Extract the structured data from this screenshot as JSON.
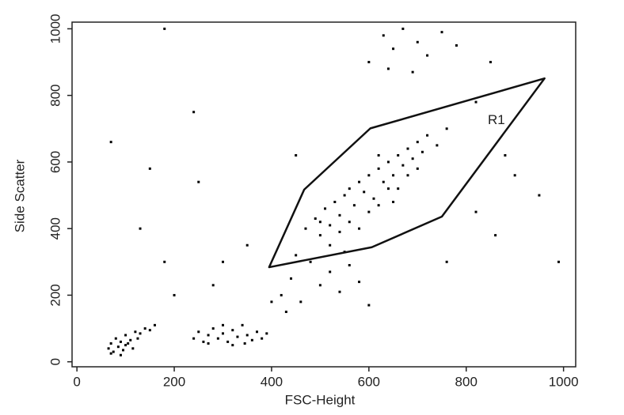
{
  "chart_data": {
    "type": "scatter",
    "xlabel": "FSC-Height",
    "ylabel": "Side Scatter",
    "xlim": [
      -10,
      1025
    ],
    "ylim": [
      -15,
      1020
    ],
    "xticks": [
      0,
      200,
      400,
      600,
      800,
      1000
    ],
    "yticks": [
      0,
      200,
      400,
      600,
      800,
      1000
    ],
    "color": "#000000",
    "x": [
      65,
      70,
      75,
      80,
      85,
      90,
      95,
      100,
      105,
      110,
      115,
      120,
      125,
      130,
      140,
      150,
      160,
      70,
      90,
      100,
      240,
      250,
      260,
      270,
      280,
      290,
      300,
      310,
      320,
      330,
      340,
      350,
      360,
      370,
      380,
      300,
      320,
      270,
      345,
      390,
      470,
      490,
      500,
      510,
      520,
      530,
      540,
      550,
      560,
      570,
      580,
      590,
      600,
      610,
      620,
      630,
      640,
      650,
      660,
      670,
      680,
      690,
      700,
      710,
      720,
      740,
      760,
      600,
      620,
      640,
      560,
      580,
      650,
      680,
      700,
      540,
      500,
      520,
      620,
      660,
      420,
      440,
      460,
      480,
      500,
      520,
      540,
      560,
      580,
      600,
      450,
      430,
      550,
      630,
      650,
      670,
      700,
      720,
      750,
      780,
      600,
      640,
      690,
      70,
      130,
      150,
      180,
      200,
      240,
      250,
      280,
      300,
      350,
      400,
      820,
      860,
      900,
      950,
      990,
      820,
      880,
      760,
      450,
      180,
      850
    ],
    "y": [
      40,
      55,
      30,
      70,
      45,
      60,
      35,
      80,
      55,
      65,
      40,
      90,
      70,
      85,
      100,
      95,
      110,
      25,
      20,
      50,
      70,
      90,
      60,
      80,
      100,
      70,
      85,
      60,
      95,
      75,
      110,
      80,
      65,
      90,
      70,
      110,
      50,
      55,
      55,
      85,
      400,
      430,
      380,
      460,
      410,
      480,
      440,
      500,
      520,
      470,
      540,
      510,
      560,
      490,
      580,
      540,
      600,
      560,
      620,
      590,
      640,
      610,
      660,
      630,
      680,
      650,
      700,
      450,
      470,
      520,
      420,
      400,
      480,
      560,
      580,
      390,
      420,
      350,
      620,
      520,
      200,
      250,
      180,
      300,
      230,
      270,
      210,
      290,
      240,
      170,
      320,
      150,
      330,
      980,
      940,
      1000,
      960,
      920,
      990,
      950,
      900,
      880,
      870,
      660,
      400,
      580,
      300,
      200,
      750,
      540,
      230,
      300,
      350,
      180,
      450,
      380,
      560,
      500,
      300,
      780,
      620,
      300,
      620,
      1000,
      900
    ],
    "gate": {
      "label": "R1",
      "x": [
        395,
        467,
        603,
        961,
        750,
        606
      ],
      "y": [
        284,
        517,
        701,
        851,
        436,
        344
      ],
      "label_x": 862,
      "label_y": 725
    }
  }
}
